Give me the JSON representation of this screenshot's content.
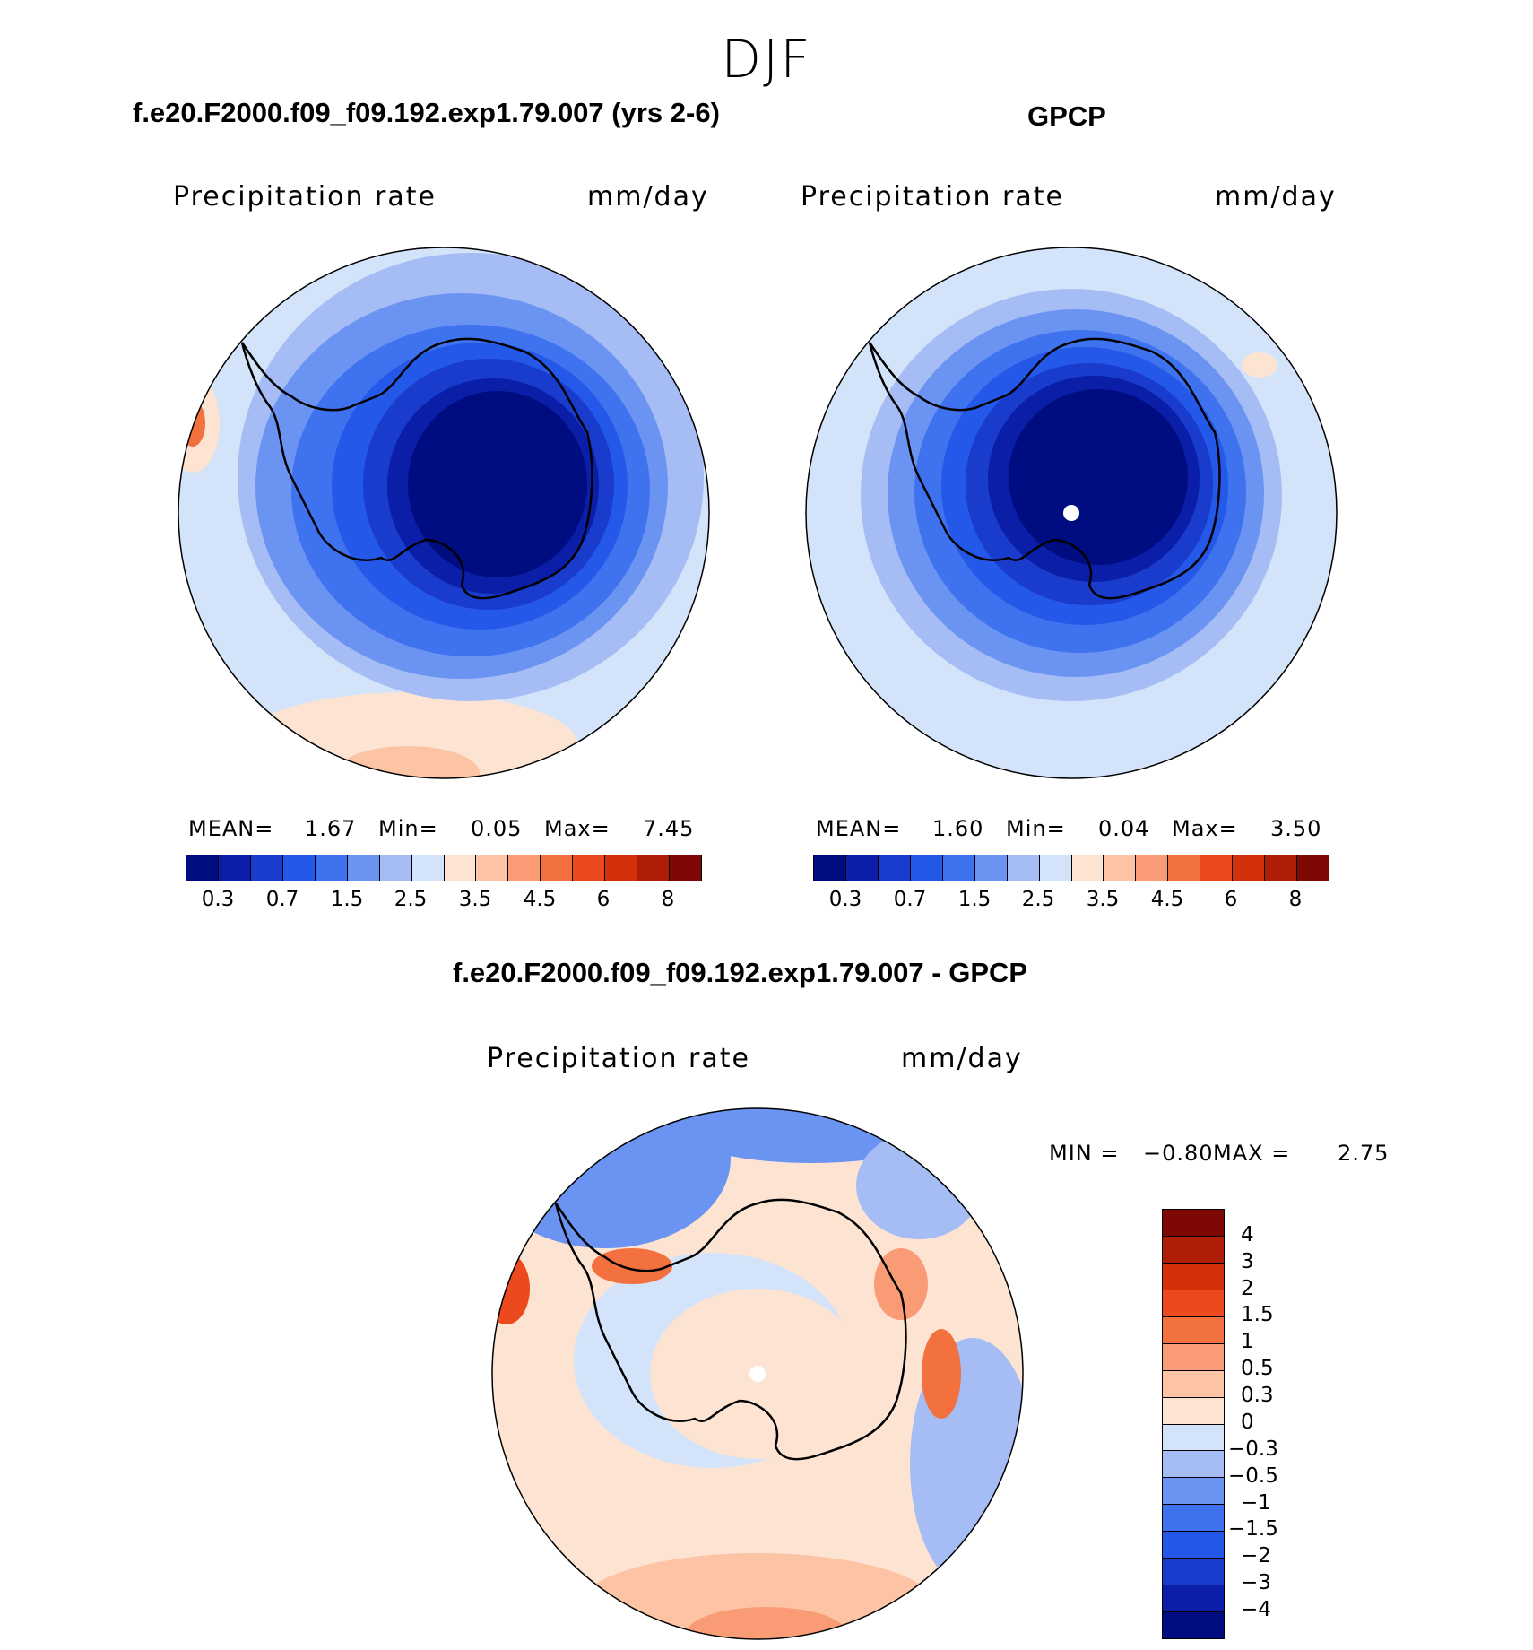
{
  "figure": {
    "season": "DJF",
    "panel1_title": "f.e20.F2000.f09_f09.192.exp1.79.007 (yrs 2-6)",
    "panel2_title": "GPCP",
    "panel3_title": "f.e20.F2000.f09_f09.192.exp1.79.007 - GPCP"
  },
  "panels": [
    {
      "variable": "Precipitation rate",
      "units": "mm/day",
      "mean_label": "MEAN=",
      "mean": "1.67",
      "min_label": "Min=",
      "min": "0.05",
      "max_label": "Max=",
      "max": "7.45"
    },
    {
      "variable": "Precipitation rate",
      "units": "mm/day",
      "mean_label": "MEAN=",
      "mean": "1.60",
      "min_label": "Min=",
      "min": "0.04",
      "max_label": "Max=",
      "max": "3.50"
    },
    {
      "variable": "Precipitation rate",
      "units": "mm/day",
      "min_label": "MIN =",
      "min": "−0.80",
      "max_label": "MAX =",
      "max": "2.75"
    }
  ],
  "abs_colorbar": {
    "colors": [
      "#000d80",
      "#0a1ea8",
      "#1a3ccc",
      "#2458e8",
      "#3f72ee",
      "#6b93f2",
      "#a5bdf4",
      "#d3e3fa",
      "#fde4d2",
      "#fcc4a5",
      "#f99c76",
      "#f3703f",
      "#ec4a1e",
      "#d5300c",
      "#b01d06",
      "#7e0803"
    ],
    "labels": [
      "0.3",
      "0.7",
      "1.5",
      "2.5",
      "3.5",
      "4.5",
      "6",
      "8"
    ]
  },
  "diff_colorbar": {
    "colors": [
      "#7e0803",
      "#b01d06",
      "#d5300c",
      "#ec4a1e",
      "#f3703f",
      "#f99c76",
      "#fcc4a5",
      "#fde4d2",
      "#d3e3fa",
      "#a5bdf4",
      "#6b93f2",
      "#3f72ee",
      "#2458e8",
      "#1a3ccc",
      "#0a1ea8",
      "#000d80"
    ],
    "labels": [
      "4",
      "3",
      "2",
      "1.5",
      "1",
      "0.5",
      "0.3",
      "0",
      "−0.3",
      "−0.5",
      "−1",
      "−1.5",
      "−2",
      "−3",
      "−4"
    ]
  }
}
